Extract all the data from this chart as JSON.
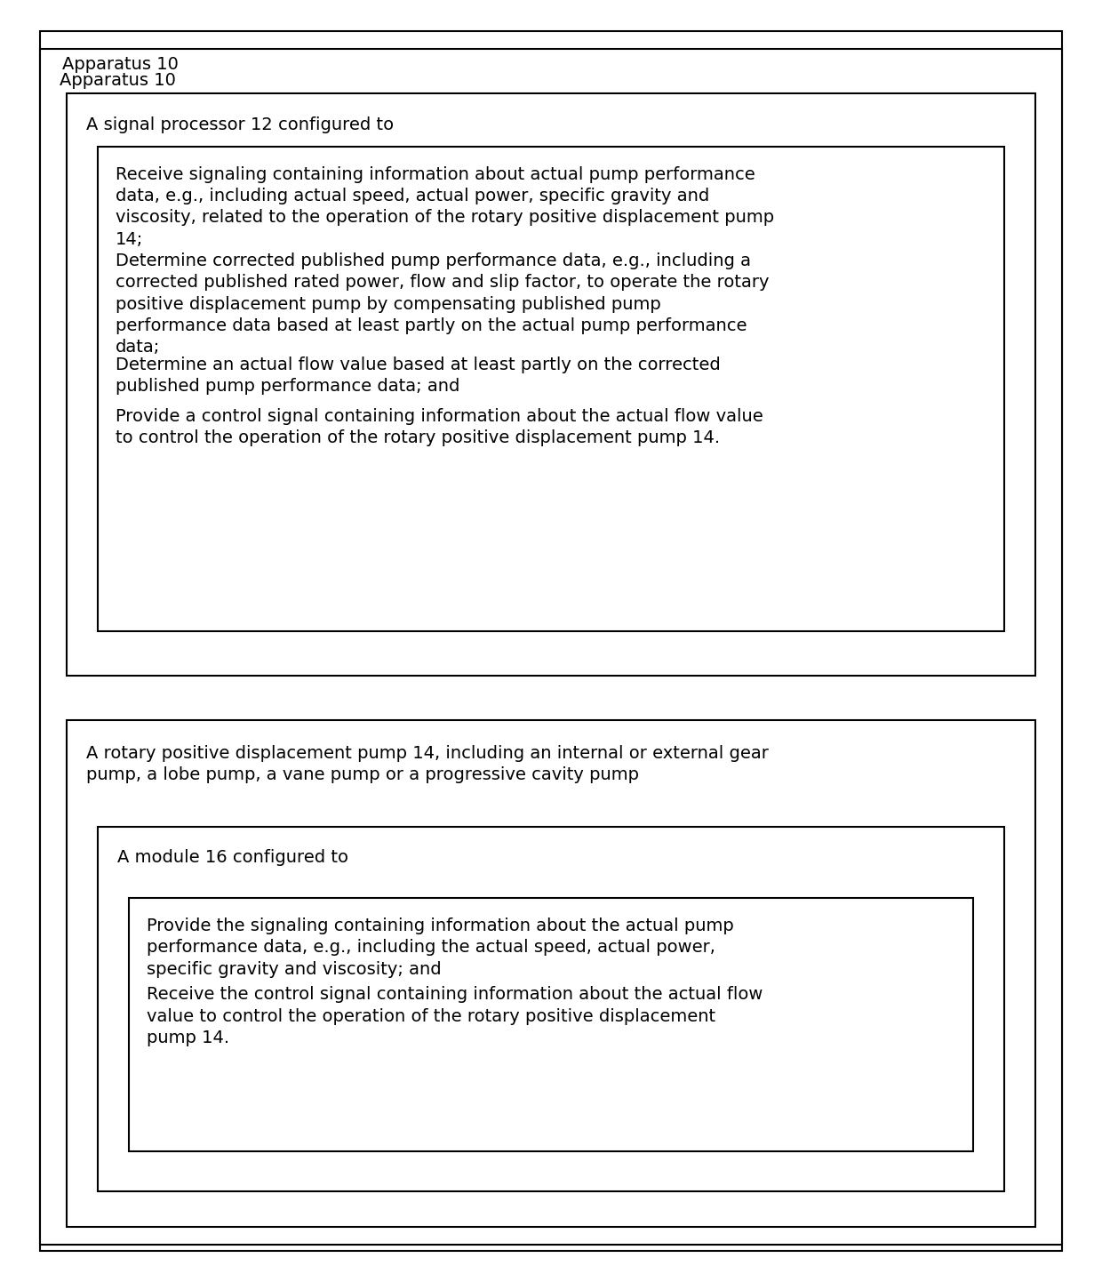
{
  "bg_color": "#ffffff",
  "border_color": "#000000",
  "text_color": "#000000",
  "font_size": 14.0,
  "font_family": "DejaVu Sans",
  "outer_title": "Apparatus 10",
  "top_box_label": "A signal processor 12 configured to",
  "bottom_box_label": "A rotary positive displacement pump 14, including an internal or external gear\npump, a lobe pump, a vane pump or a progressive cavity pump",
  "module_box_label": "A module 16 configured to",
  "inner_top_texts": [
    "Receive signaling containing information about actual pump performance\ndata, e.g., including actual speed, actual power, specific gravity and\nviscosity, related to the operation of the rotary positive displacement pump\n14;",
    "Determine corrected published pump performance data, e.g., including a\ncorrected published rated power, flow and slip factor, to operate the rotary\npositive displacement pump by compensating published pump\nperformance data based at least partly on the actual pump performance\ndata;",
    "Determine an actual flow value based at least partly on the corrected\npublished pump performance data; and",
    "Provide a control signal containing information about the actual flow value\nto control the operation of the rotary positive displacement pump 14."
  ],
  "inner_bottom_texts": [
    "Provide the signaling containing information about the actual pump\nperformance data, e.g., including the actual speed, actual power,\nspecific gravity and viscosity; and",
    "Receive the control signal containing information about the actual flow\nvalue to control the operation of the rotary positive displacement\npump 14."
  ],
  "lw": 1.5
}
